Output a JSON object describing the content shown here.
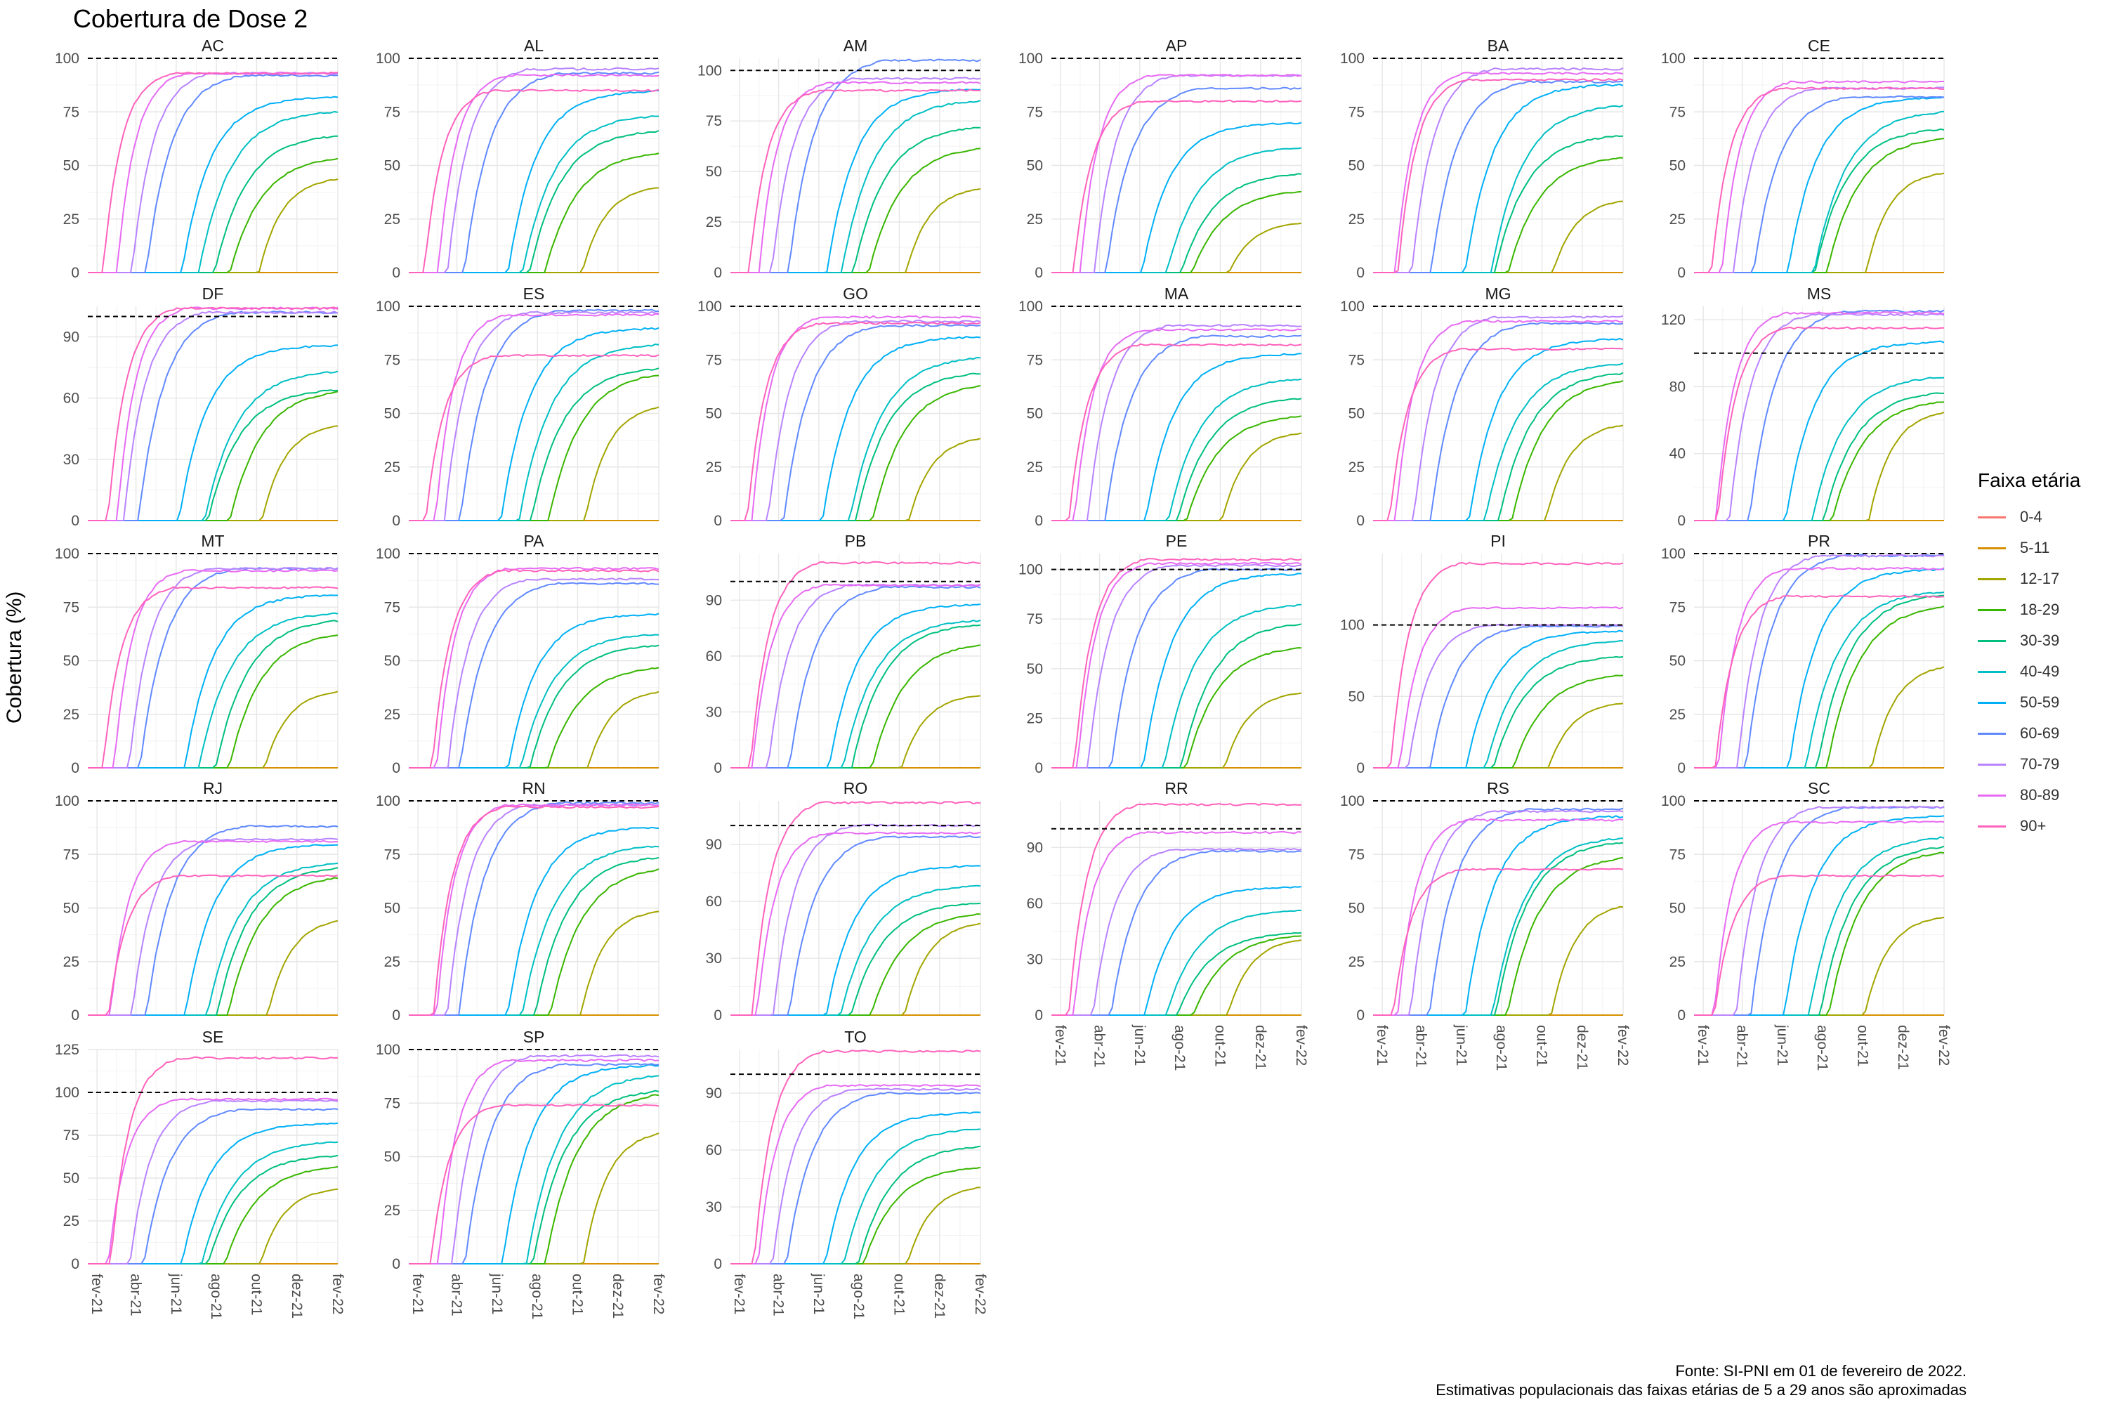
{
  "title": "Cobertura de Dose 2",
  "ylabel": "Cobertura (%)",
  "legend": {
    "title": "Faixa etária",
    "items": [
      {
        "label": "0-4",
        "color": "#F8766D"
      },
      {
        "label": "5-11",
        "color": "#D89000"
      },
      {
        "label": "12-17",
        "color": "#A3A500"
      },
      {
        "label": "18-29",
        "color": "#39B600"
      },
      {
        "label": "30-39",
        "color": "#00BF7D"
      },
      {
        "label": "40-49",
        "color": "#00BFC4"
      },
      {
        "label": "50-59",
        "color": "#00B0F6"
      },
      {
        "label": "60-69",
        "color": "#6189FF"
      },
      {
        "label": "70-79",
        "color": "#B983FF"
      },
      {
        "label": "80-89",
        "color": "#E76BF3"
      },
      {
        "label": "90+",
        "color": "#FF62BC"
      }
    ]
  },
  "caption": {
    "line1": "Fonte: SI-PNI em 01 de fevereiro de 2022.",
    "line2": "Estimativas populacionais das faixas etárias de 5 a 29 anos são aproximadas"
  },
  "chart_data": {
    "type": "line",
    "x_tick_labels": [
      "fev-21",
      "abr-21",
      "jun-21",
      "ago-21",
      "out-21",
      "dez-21",
      "fev-22"
    ],
    "x_range": [
      "2021-01-18",
      "2022-02-01"
    ],
    "reference_line": 100,
    "panels": [
      {
        "name": "AC",
        "ylim": [
          0,
          100
        ],
        "yticks": [
          0,
          25,
          50,
          75,
          100
        ],
        "finals": [
          0,
          0,
          45,
          55,
          65,
          76,
          82,
          92,
          93,
          93,
          93
        ]
      },
      {
        "name": "AL",
        "ylim": [
          0,
          100
        ],
        "yticks": [
          0,
          25,
          50,
          75,
          100
        ],
        "finals": [
          0,
          0,
          41,
          57,
          67,
          74,
          85,
          93,
          95,
          92,
          85
        ]
      },
      {
        "name": "AM",
        "ylim": [
          0,
          106
        ],
        "yticks": [
          0,
          25,
          50,
          75,
          100
        ],
        "finals": [
          0,
          0,
          43,
          63,
          73,
          86,
          91,
          105,
          96,
          94,
          90
        ]
      },
      {
        "name": "AP",
        "ylim": [
          0,
          100
        ],
        "yticks": [
          0,
          25,
          50,
          75,
          100
        ],
        "finals": [
          0,
          0,
          24,
          39,
          47,
          59,
          70,
          86,
          92,
          92,
          80
        ]
      },
      {
        "name": "BA",
        "ylim": [
          0,
          100
        ],
        "yticks": [
          0,
          25,
          50,
          75,
          100
        ],
        "finals": [
          0,
          0,
          35,
          55,
          65,
          79,
          88,
          89,
          95,
          93,
          90
        ]
      },
      {
        "name": "CE",
        "ylim": [
          0,
          100
        ],
        "yticks": [
          0,
          25,
          50,
          75,
          100
        ],
        "finals": [
          0,
          0,
          48,
          64,
          68,
          76,
          82,
          82,
          86,
          89,
          86
        ]
      },
      {
        "name": "DF",
        "ylim": [
          0,
          105
        ],
        "yticks": [
          0,
          30,
          60,
          90
        ],
        "finals": [
          0,
          0,
          48,
          65,
          65,
          74,
          86,
          102,
          102,
          104,
          104
        ]
      },
      {
        "name": "ES",
        "ylim": [
          0,
          100
        ],
        "yticks": [
          0,
          25,
          50,
          75,
          100
        ],
        "finals": [
          0,
          0,
          55,
          70,
          72,
          83,
          90,
          98,
          97,
          96,
          77
        ]
      },
      {
        "name": "GO",
        "ylim": [
          0,
          100
        ],
        "yticks": [
          0,
          25,
          50,
          75,
          100
        ],
        "finals": [
          0,
          0,
          40,
          65,
          70,
          77,
          86,
          91,
          93,
          95,
          92
        ]
      },
      {
        "name": "MA",
        "ylim": [
          0,
          100
        ],
        "yticks": [
          0,
          25,
          50,
          75,
          100
        ],
        "finals": [
          0,
          0,
          42,
          50,
          58,
          67,
          78,
          86,
          91,
          89,
          82
        ]
      },
      {
        "name": "MG",
        "ylim": [
          0,
          100
        ],
        "yticks": [
          0,
          25,
          50,
          75,
          100
        ],
        "finals": [
          0,
          0,
          46,
          67,
          70,
          74,
          85,
          92,
          95,
          93,
          80
        ]
      },
      {
        "name": "MS",
        "ylim": [
          0,
          128
        ],
        "yticks": [
          0,
          40,
          80,
          120
        ],
        "finals": [
          0,
          0,
          67,
          73,
          78,
          87,
          107,
          125,
          123,
          124,
          115
        ]
      },
      {
        "name": "MT",
        "ylim": [
          0,
          100
        ],
        "yticks": [
          0,
          25,
          50,
          75,
          100
        ],
        "finals": [
          0,
          0,
          37,
          64,
          70,
          73,
          81,
          93,
          93,
          92,
          84
        ]
      },
      {
        "name": "PA",
        "ylim": [
          0,
          100
        ],
        "yticks": [
          0,
          25,
          50,
          75,
          100
        ],
        "finals": [
          0,
          0,
          37,
          48,
          58,
          63,
          72,
          86,
          88,
          93,
          92
        ]
      },
      {
        "name": "PB",
        "ylim": [
          0,
          115
        ],
        "yticks": [
          0,
          30,
          60,
          90
        ],
        "finals": [
          0,
          0,
          40,
          68,
          78,
          80,
          88,
          97,
          98,
          98,
          110
        ]
      },
      {
        "name": "PE",
        "ylim": [
          0,
          108
        ],
        "yticks": [
          0,
          25,
          50,
          75,
          100
        ],
        "finals": [
          0,
          0,
          39,
          62,
          74,
          83,
          98,
          100,
          102,
          103,
          105
        ]
      },
      {
        "name": "PI",
        "ylim": [
          0,
          150
        ],
        "yticks": [
          0,
          50,
          100
        ],
        "finals": [
          0,
          0,
          47,
          67,
          79,
          90,
          96,
          99,
          100,
          112,
          143
        ]
      },
      {
        "name": "PR",
        "ylim": [
          0,
          100
        ],
        "yticks": [
          0,
          25,
          50,
          75,
          100
        ],
        "finals": [
          0,
          0,
          49,
          77,
          82,
          83,
          93,
          99,
          99,
          93,
          80
        ]
      },
      {
        "name": "RJ",
        "ylim": [
          0,
          100
        ],
        "yticks": [
          0,
          25,
          50,
          75,
          100
        ],
        "finals": [
          0,
          0,
          46,
          66,
          70,
          72,
          80,
          88,
          82,
          81,
          65
        ]
      },
      {
        "name": "RN",
        "ylim": [
          0,
          100
        ],
        "yticks": [
          0,
          25,
          50,
          75,
          100
        ],
        "finals": [
          0,
          0,
          50,
          70,
          75,
          80,
          88,
          99,
          98,
          98,
          97
        ]
      },
      {
        "name": "RO",
        "ylim": [
          0,
          113
        ],
        "yticks": [
          0,
          30,
          60,
          90
        ],
        "finals": [
          0,
          0,
          50,
          55,
          60,
          69,
          79,
          94,
          100,
          96,
          112
        ]
      },
      {
        "name": "RR",
        "ylim": [
          0,
          115
        ],
        "yticks": [
          0,
          30,
          60,
          90
        ],
        "finals": [
          0,
          0,
          42,
          44,
          45,
          57,
          69,
          88,
          89,
          98,
          113
        ]
      },
      {
        "name": "RS",
        "ylim": [
          0,
          100
        ],
        "yticks": [
          0,
          25,
          50,
          75,
          100
        ],
        "finals": [
          0,
          0,
          53,
          75,
          82,
          84,
          93,
          96,
          95,
          91,
          68
        ]
      },
      {
        "name": "SC",
        "ylim": [
          0,
          100
        ],
        "yticks": [
          0,
          25,
          50,
          75,
          100
        ],
        "finals": [
          0,
          0,
          47,
          78,
          80,
          84,
          93,
          97,
          97,
          90,
          65
        ]
      },
      {
        "name": "SE",
        "ylim": [
          0,
          125
        ],
        "yticks": [
          0,
          25,
          50,
          75,
          100,
          125
        ],
        "finals": [
          0,
          0,
          45,
          58,
          64,
          72,
          82,
          90,
          95,
          96,
          120
        ]
      },
      {
        "name": "SP",
        "ylim": [
          0,
          100
        ],
        "yticks": [
          0,
          25,
          50,
          75,
          100
        ],
        "finals": [
          0,
          0,
          63,
          81,
          82,
          89,
          93,
          93,
          97,
          95,
          74
        ]
      },
      {
        "name": "TO",
        "ylim": [
          0,
          113
        ],
        "yticks": [
          0,
          30,
          60,
          90
        ],
        "finals": [
          0,
          0,
          42,
          52,
          63,
          72,
          80,
          90,
          92,
          94,
          112
        ]
      }
    ]
  }
}
